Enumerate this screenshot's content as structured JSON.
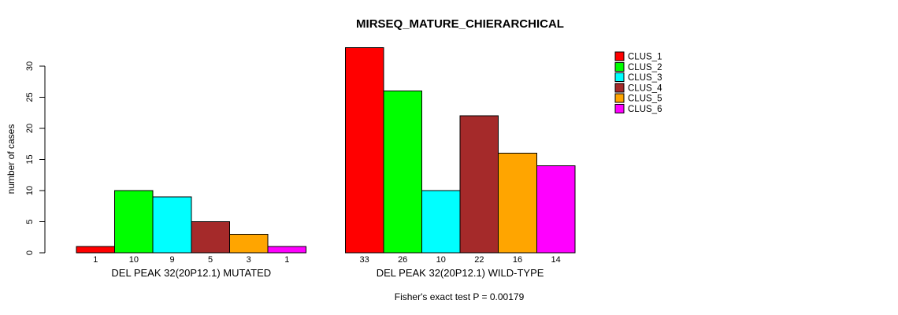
{
  "title": "MIRSEQ_MATURE_CHIERARCHICAL",
  "chart_data": {
    "type": "bar",
    "title": "MIRSEQ_MATURE_CHIERARCHICAL",
    "ylabel": "number of cases",
    "xlabel": "",
    "ylim": [
      0,
      33
    ],
    "yticks": [
      0,
      5,
      10,
      15,
      20,
      25,
      30
    ],
    "grid": false,
    "legend_position": "right",
    "legend": [
      {
        "label": "CLUS_1",
        "color": "#FF0000"
      },
      {
        "label": "CLUS_2",
        "color": "#00FF00"
      },
      {
        "label": "CLUS_3",
        "color": "#00FFFF"
      },
      {
        "label": "CLUS_4",
        "color": "#A52A2A"
      },
      {
        "label": "CLUS_5",
        "color": "#FFA500"
      },
      {
        "label": "CLUS_6",
        "color": "#FF00FF"
      }
    ],
    "groups": [
      {
        "label": "DEL PEAK 32(20P12.1) MUTATED",
        "values": [
          1,
          10,
          9,
          5,
          3,
          1
        ]
      },
      {
        "label": "DEL PEAK 32(20P12.1) WILD-TYPE",
        "values": [
          33,
          26,
          10,
          22,
          16,
          14
        ]
      }
    ],
    "annotation": "Fisher's exact test P = 0.00179"
  }
}
